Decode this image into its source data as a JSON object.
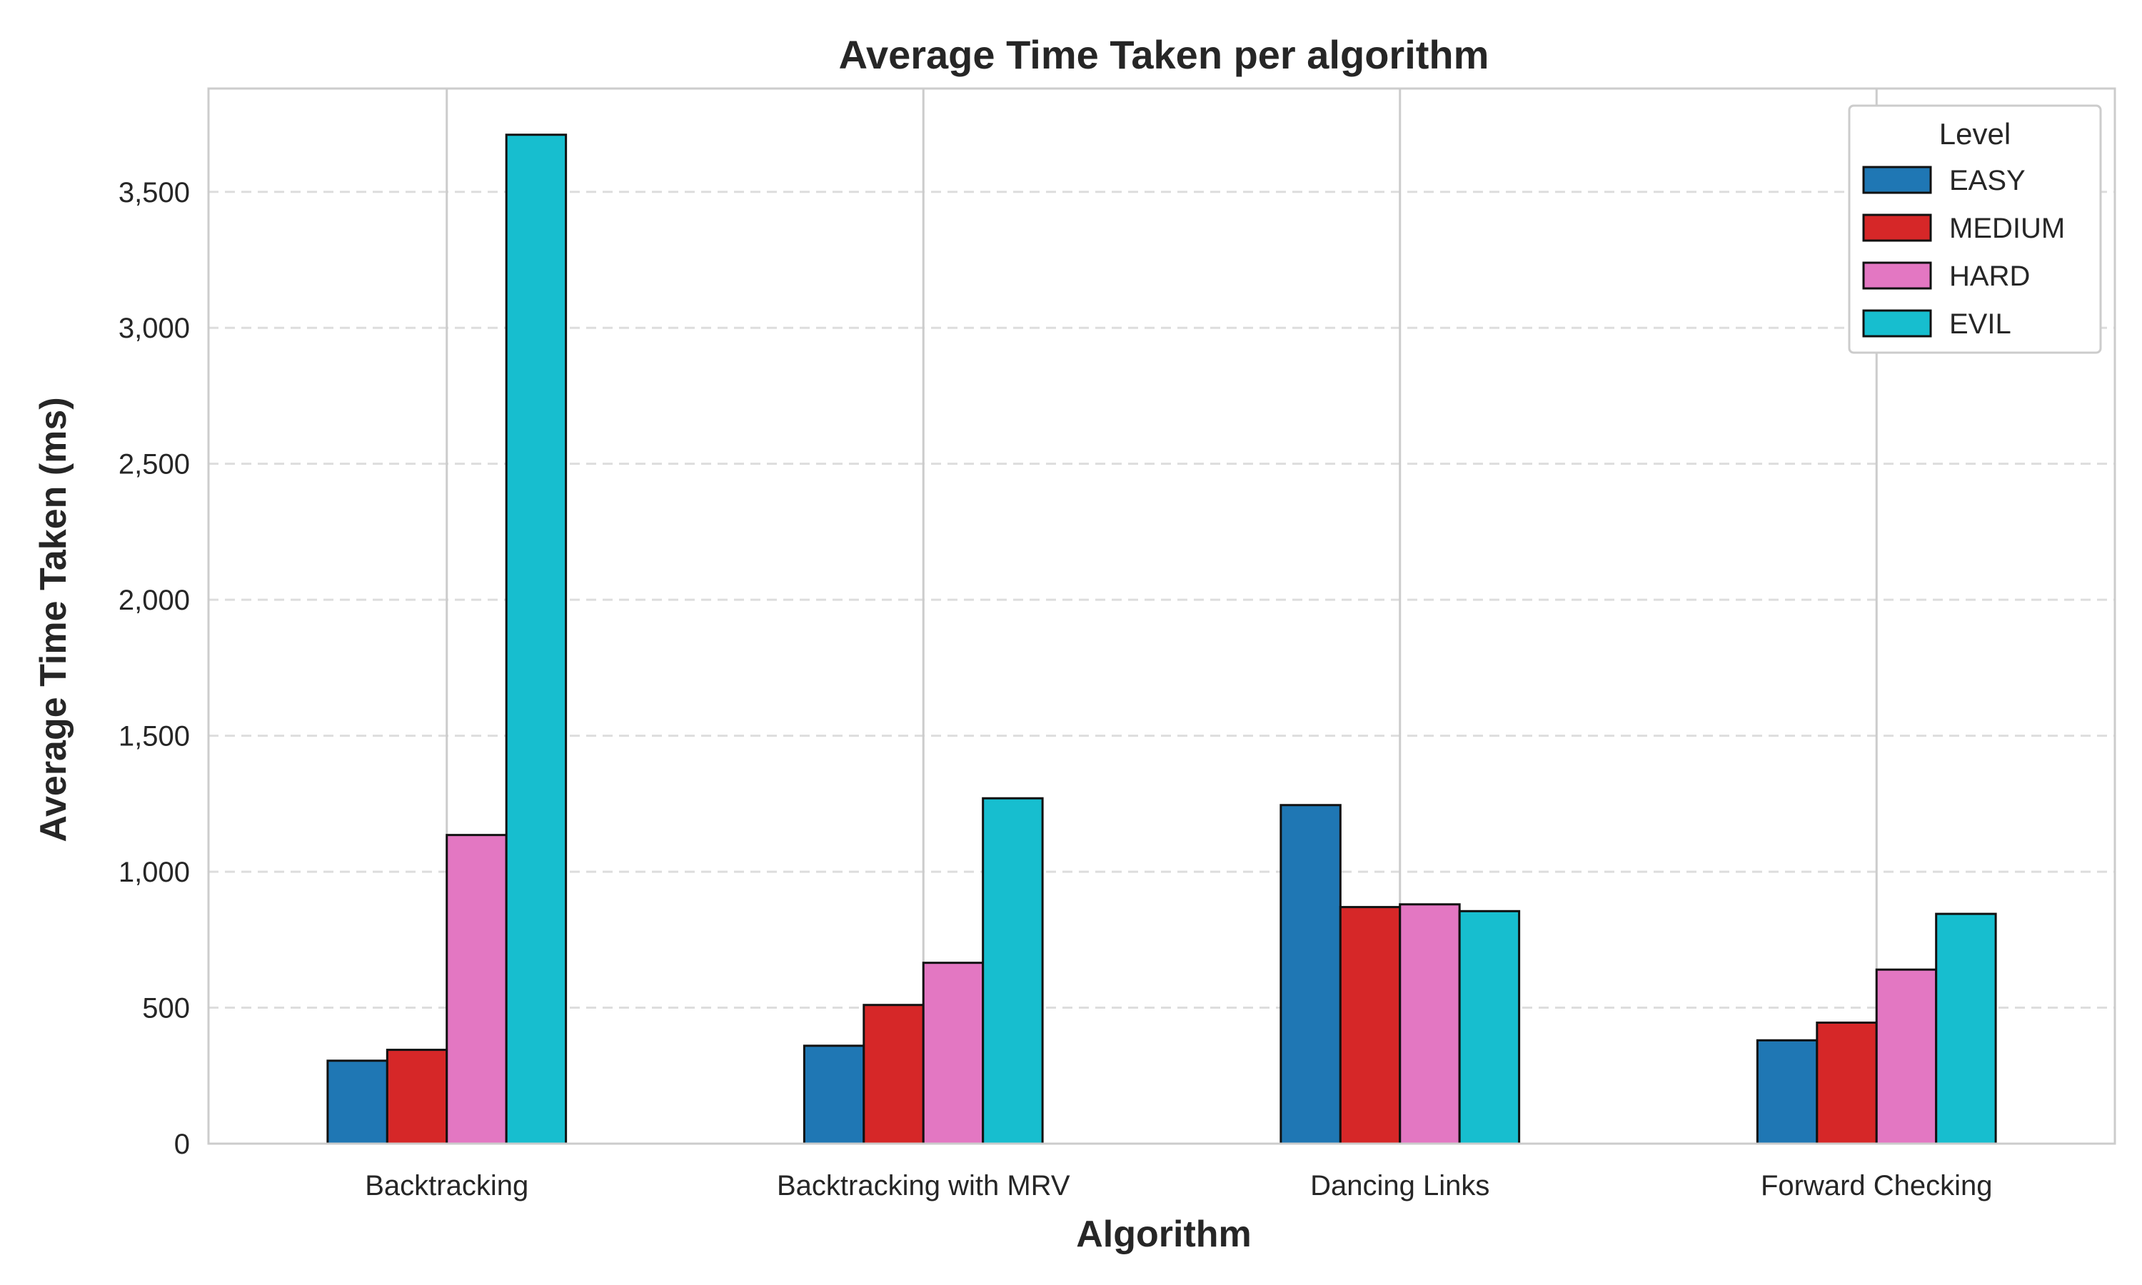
{
  "chart_data": {
    "type": "bar",
    "title": "Average Time Taken per algorithm",
    "xlabel": "Algorithm",
    "ylabel": "Average Time Taken (ms)",
    "ylim": [
      0,
      3880
    ],
    "yticks": [
      0,
      500,
      1000,
      1500,
      2000,
      2500,
      3000,
      3500
    ],
    "ytick_labels": [
      "0",
      "500",
      "1,000",
      "1,500",
      "2,000",
      "2,500",
      "3,000",
      "3,500"
    ],
    "categories": [
      "Backtracking",
      "Backtracking with MRV",
      "Dancing Links",
      "Forward Checking"
    ],
    "legend_title": "Level",
    "legend_position": "top-right",
    "grid": {
      "horizontal_dashed": true,
      "vertical_at_categories": true
    },
    "series": [
      {
        "name": "EASY",
        "color": "#1f77b4",
        "values": [
          305,
          360,
          1245,
          380
        ]
      },
      {
        "name": "MEDIUM",
        "color": "#d62728",
        "values": [
          345,
          510,
          870,
          445
        ]
      },
      {
        "name": "HARD",
        "color": "#e377c2",
        "values": [
          1135,
          665,
          880,
          640
        ]
      },
      {
        "name": "EVIL",
        "color": "#17becf",
        "values": [
          3710,
          1270,
          855,
          845
        ]
      }
    ]
  }
}
